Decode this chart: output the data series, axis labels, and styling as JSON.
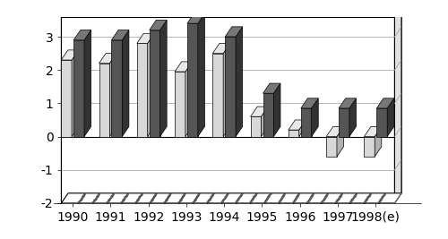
{
  "categories": [
    "1990",
    "1991",
    "1992",
    "1993",
    "1994",
    "1995",
    "1996",
    "1997",
    "1998(e)"
  ],
  "series1_values": [
    2.3,
    2.2,
    2.8,
    1.95,
    2.5,
    0.6,
    0.2,
    -0.6,
    -0.6
  ],
  "series2_values": [
    2.9,
    2.9,
    3.2,
    3.4,
    3.0,
    1.3,
    0.85,
    0.85,
    0.85
  ],
  "series1_color_face": "#d8d8d8",
  "series1_color_side": "#b0b0b0",
  "series1_color_top": "#e8e8e8",
  "series2_color_face": "#555555",
  "series2_color_side": "#333333",
  "series2_color_top": "#777777",
  "ylim": [
    -2.0,
    3.6
  ],
  "yticks": [
    -2,
    -1,
    0,
    1,
    2,
    3
  ],
  "figsize": [
    5.0,
    2.67
  ],
  "dpi": 100,
  "background_color": "#ffffff"
}
